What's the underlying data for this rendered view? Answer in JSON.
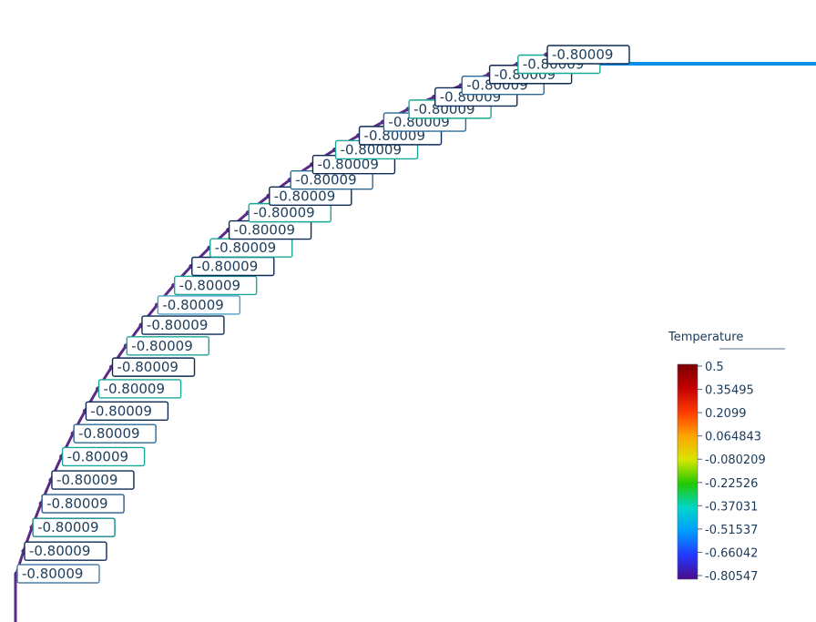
{
  "legend": {
    "title": "Temperature",
    "ticks": [
      "0.5",
      "0.35495",
      "0.2099",
      "0.064843",
      "-0.080209",
      "-0.22526",
      "-0.37031",
      "-0.51537",
      "-0.66042",
      "-0.80547"
    ],
    "colors": [
      "#7a0000",
      "#c40000",
      "#ff3b00",
      "#ffa400",
      "#d8e600",
      "#22c800",
      "#00d7c9",
      "#009cff",
      "#2338ff",
      "#4a0a8a"
    ],
    "range": [
      -0.80547,
      0.5
    ]
  },
  "scene": {
    "curve_color": "#5b2a86",
    "line_color": "#0a8fe8",
    "labels": [
      {
        "text": "-0.80009",
        "border": "#4a7fa8"
      },
      {
        "text": "-0.80009",
        "border": "#0c2a55"
      },
      {
        "text": "-0.80009",
        "border": "#118a8a"
      },
      {
        "text": "-0.80009",
        "border": "#2a5a8a"
      },
      {
        "text": "-0.80009",
        "border": "#0c2a55"
      },
      {
        "text": "-0.80009",
        "border": "#18a898"
      },
      {
        "text": "-0.80009",
        "border": "#2a6a9a"
      },
      {
        "text": "-0.80009",
        "border": "#0c2a55"
      },
      {
        "text": "-0.80009",
        "border": "#18a898"
      },
      {
        "text": "-0.80009",
        "border": "#0c2a55"
      },
      {
        "text": "-0.80009",
        "border": "#18a898"
      },
      {
        "text": "-0.80009",
        "border": "#0c2a55"
      },
      {
        "text": "-0.80009",
        "border": "#4aa0c8"
      },
      {
        "text": "-0.80009",
        "border": "#18a898"
      },
      {
        "text": "-0.80009",
        "border": "#0c2a55"
      },
      {
        "text": "-0.80009",
        "border": "#18a898"
      },
      {
        "text": "-0.80009",
        "border": "#0c2a55"
      },
      {
        "text": "-0.80009",
        "border": "#18a898"
      },
      {
        "text": "-0.80009",
        "border": "#0c2a55"
      },
      {
        "text": "-0.80009",
        "border": "#2a6a9a"
      },
      {
        "text": "-0.80009",
        "border": "#0c2a55"
      },
      {
        "text": "-0.80009",
        "border": "#18a898"
      },
      {
        "text": "-0.80009",
        "border": "#0c2a55"
      },
      {
        "text": "-0.80009",
        "border": "#2a6a9a"
      },
      {
        "text": "-0.80009",
        "border": "#18a898"
      },
      {
        "text": "-0.80009",
        "border": "#0c2a55"
      },
      {
        "text": "-0.80009",
        "border": "#2a6a9a"
      },
      {
        "text": "-0.80009",
        "border": "#0c2a55"
      },
      {
        "text": "-0.80009",
        "border": "#18a898"
      },
      {
        "text": "-0.80009",
        "border": "#0c2a55"
      }
    ]
  }
}
